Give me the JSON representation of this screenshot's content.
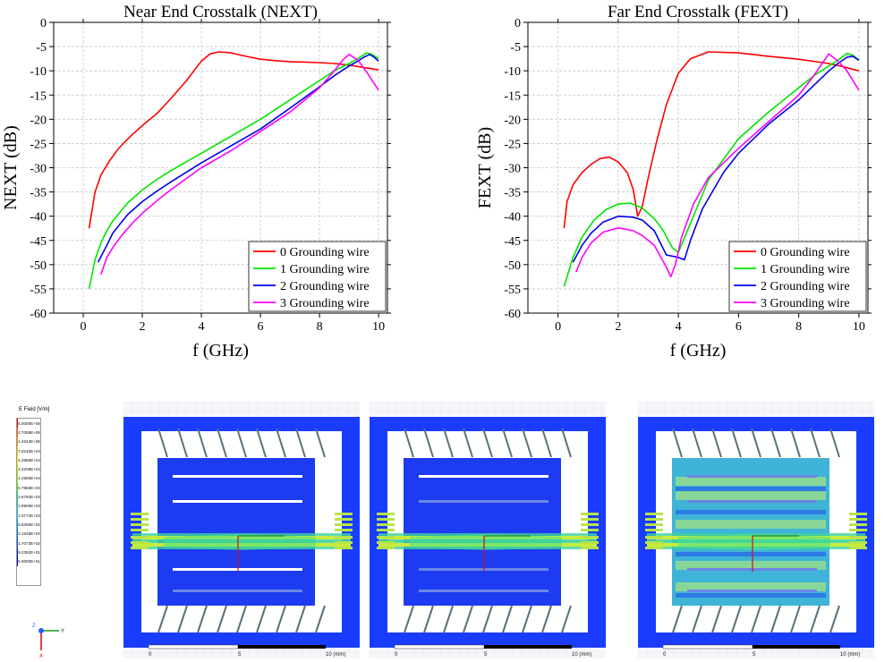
{
  "chart_data": [
    {
      "type": "line",
      "title": "Near End Crosstalk (NEXT)",
      "xlabel": "f (GHz)",
      "ylabel": "NEXT (dB)",
      "xlim": [
        -1,
        10.3
      ],
      "ylim": [
        -60,
        0
      ],
      "xticks": [
        "0",
        "2",
        "4",
        "6",
        "8",
        "10"
      ],
      "yticks": [
        "0",
        "-5",
        "-10",
        "-15",
        "-20",
        "-25",
        "-30",
        "-35",
        "-40",
        "-45",
        "-50",
        "-55",
        "-60"
      ],
      "grid": true,
      "legend_position": "bottom-right",
      "series": [
        {
          "name": "0 Grounding wire",
          "color": "#ff0000",
          "x": [
            0.2,
            0.4,
            0.6,
            0.9,
            1.2,
            1.6,
            2.0,
            2.5,
            3.0,
            3.5,
            4.0,
            4.3,
            4.6,
            5.0,
            5.5,
            6.0,
            6.5,
            7.0,
            7.5,
            8.0,
            8.5,
            9.0,
            9.5,
            10.0
          ],
          "y": [
            -42.5,
            -35,
            -31.5,
            -28.5,
            -26,
            -23.5,
            -21.3,
            -18.8,
            -15.5,
            -12,
            -8,
            -6.5,
            -6.1,
            -6.3,
            -7,
            -7.6,
            -7.9,
            -8.1,
            -8.2,
            -8.3,
            -8.5,
            -8.8,
            -9.3,
            -9.8
          ]
        },
        {
          "name": "1 Grounding wire",
          "color": "#00e600",
          "x": [
            0.2,
            0.4,
            0.6,
            0.8,
            1.0,
            1.5,
            2.0,
            2.5,
            3.0,
            4.0,
            5.0,
            6.0,
            7.0,
            8.0,
            8.5,
            9.0,
            9.3,
            9.6,
            9.8,
            10.0
          ],
          "y": [
            -55,
            -49,
            -45.5,
            -43,
            -41,
            -37.3,
            -34.6,
            -32.4,
            -30.5,
            -27,
            -23.5,
            -20,
            -16,
            -12,
            -10,
            -8.5,
            -7.5,
            -6.3,
            -6.7,
            -7.5
          ]
        },
        {
          "name": "2 Grounding wire",
          "color": "#0000e6",
          "x": [
            0.5,
            0.8,
            1.0,
            1.5,
            2.0,
            2.5,
            3.0,
            4.0,
            5.0,
            6.0,
            7.0,
            7.5,
            8.0,
            8.5,
            9.0,
            9.3,
            9.5,
            9.7,
            9.85,
            10.0
          ],
          "y": [
            -49.5,
            -46,
            -43.5,
            -39.7,
            -37,
            -34.8,
            -32.8,
            -29,
            -25.5,
            -22,
            -17.7,
            -15.5,
            -13.3,
            -11,
            -9,
            -8,
            -7.2,
            -6.6,
            -7.2,
            -8
          ]
        },
        {
          "name": "3 Grounding wire",
          "color": "#ff00ff",
          "x": [
            0.6,
            0.8,
            1.0,
            1.3,
            1.7,
            2.0,
            2.5,
            3.0,
            4.0,
            5.0,
            6.0,
            7.0,
            7.5,
            8.0,
            8.5,
            8.8,
            9.0,
            9.3,
            9.6,
            10.0
          ],
          "y": [
            -52,
            -48.5,
            -46.5,
            -44,
            -41.2,
            -39.4,
            -36.8,
            -34.4,
            -30,
            -26.5,
            -22.5,
            -18.5,
            -16,
            -13.5,
            -10,
            -7.7,
            -6.6,
            -7.8,
            -10.3,
            -14
          ]
        }
      ]
    },
    {
      "type": "line",
      "title": "Far End Crosstalk (FEXT)",
      "xlabel": "f (GHz)",
      "ylabel": "FEXT (dB)",
      "xlim": [
        -1,
        10.3
      ],
      "ylim": [
        -60,
        0
      ],
      "xticks": [
        "0",
        "2",
        "4",
        "6",
        "8",
        "10"
      ],
      "yticks": [
        "0",
        "-5",
        "-10",
        "-15",
        "-20",
        "-25",
        "-30",
        "-35",
        "-40",
        "-45",
        "-50",
        "-55",
        "-60"
      ],
      "grid": true,
      "legend_position": "bottom-right",
      "series": [
        {
          "name": "0 Grounding wire",
          "color": "#ff0000",
          "x": [
            0.2,
            0.3,
            0.5,
            0.8,
            1.1,
            1.4,
            1.7,
            2.0,
            2.3,
            2.5,
            2.65,
            2.8,
            3.0,
            3.3,
            3.6,
            4.0,
            4.4,
            5.0,
            6.0,
            7.0,
            8.0,
            9.0,
            9.5,
            10.0
          ],
          "y": [
            -42.5,
            -37,
            -33.5,
            -31,
            -29.3,
            -28.1,
            -27.8,
            -28.8,
            -31,
            -34.5,
            -40,
            -38,
            -32,
            -24,
            -17,
            -10.5,
            -7.5,
            -6.1,
            -6.3,
            -7,
            -7.6,
            -8.5,
            -9.2,
            -10
          ]
        },
        {
          "name": "1 Grounding wire",
          "color": "#00e600",
          "x": [
            0.2,
            0.5,
            0.8,
            1.2,
            1.6,
            2.0,
            2.4,
            2.8,
            3.2,
            3.5,
            3.8,
            4.0,
            4.3,
            5.0,
            6.0,
            7.0,
            8.0,
            8.5,
            9.0,
            9.3,
            9.6,
            9.8,
            10.0
          ],
          "y": [
            -54.5,
            -48.5,
            -44.3,
            -40.8,
            -38.6,
            -37.5,
            -37.3,
            -38.3,
            -40.5,
            -43,
            -46.5,
            -47.5,
            -43,
            -32.5,
            -24,
            -18.5,
            -13.5,
            -11,
            -9,
            -7.8,
            -6.4,
            -6.8,
            -7.8
          ]
        },
        {
          "name": "2 Grounding wire",
          "color": "#0000e6",
          "x": [
            0.5,
            0.8,
            1.1,
            1.5,
            2.0,
            2.5,
            2.8,
            3.2,
            3.6,
            4.0,
            4.2,
            4.4,
            4.8,
            5.5,
            6.0,
            7.0,
            8.0,
            8.5,
            9.0,
            9.3,
            9.6,
            9.8,
            10.0
          ],
          "y": [
            -49.5,
            -46,
            -43.5,
            -41.2,
            -40,
            -40.2,
            -40.8,
            -43,
            -48,
            -48.5,
            -49,
            -45,
            -38.5,
            -31,
            -27,
            -21,
            -16,
            -13,
            -10,
            -8.5,
            -7.2,
            -7,
            -7.8
          ]
        },
        {
          "name": "3 Grounding wire",
          "color": "#ff00ff",
          "x": [
            0.6,
            0.8,
            1.1,
            1.5,
            2.0,
            2.5,
            2.8,
            3.2,
            3.6,
            3.75,
            3.9,
            4.1,
            4.5,
            5.0,
            6.0,
            7.0,
            8.0,
            8.5,
            9.0,
            9.3,
            9.6,
            10.0
          ],
          "y": [
            -51.5,
            -48.5,
            -45.5,
            -43.3,
            -42.4,
            -43,
            -44,
            -46,
            -50.5,
            -52.5,
            -50,
            -44.5,
            -37.5,
            -32,
            -26,
            -20.5,
            -15,
            -11,
            -6.5,
            -8,
            -10,
            -14
          ]
        }
      ]
    }
  ],
  "sim": {
    "legend_title": "E Field [V/m]",
    "legend_values": [
      "5.0000E+05",
      "2.7058E+05",
      "1.4643E+05",
      "7.9245E+04",
      "4.2885E+04",
      "2.3208E+04",
      "1.2559E+04",
      "6.7968E+03",
      "3.6782E+03",
      "1.9905E+03",
      "1.0772E+03",
      "5.8296E+02",
      "3.1548E+02",
      "1.7073E+02",
      "9.2392E+01",
      "5.0000E+01"
    ],
    "legend_colors": [
      "#ff0000",
      "#ff5a00",
      "#ff9600",
      "#ffc800",
      "#f0e600",
      "#c8f000",
      "#96f000",
      "#50e628",
      "#00dc6e",
      "#00d2b4",
      "#00c8e6",
      "#00a0f0",
      "#0078f0",
      "#0050e6",
      "#0028d2",
      "#0000c8"
    ],
    "scale_ticks": [
      "0",
      "5",
      "10 (mm)"
    ],
    "axis_labels": [
      "Z",
      "Y",
      "X"
    ]
  }
}
